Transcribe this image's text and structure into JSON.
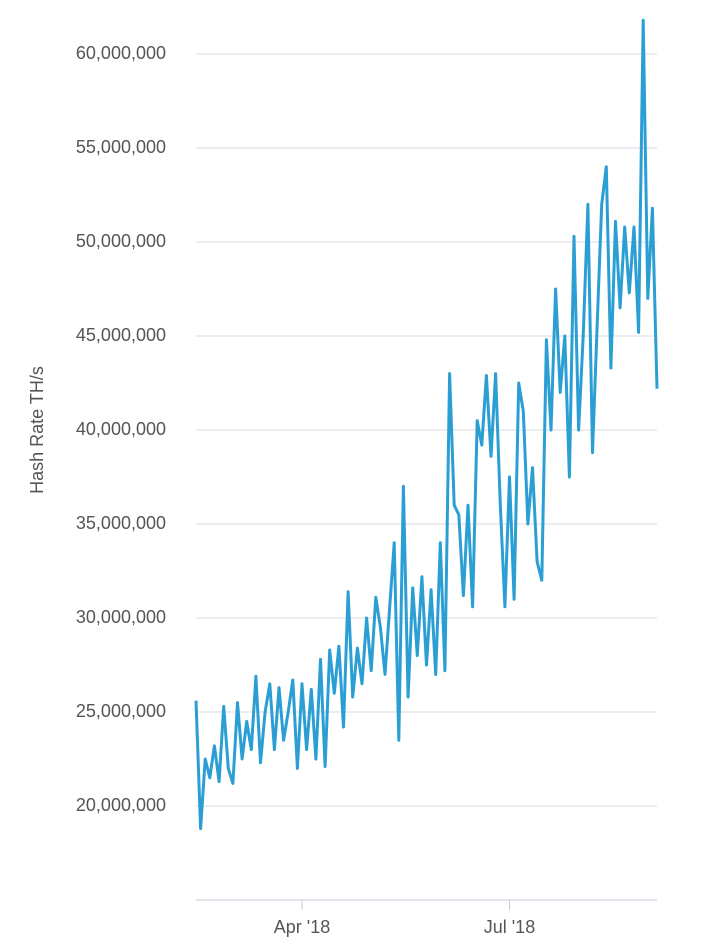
{
  "chart_data": {
    "type": "line",
    "y_label": "Hash Rate TH/s",
    "categories": [
      null,
      null,
      null,
      null,
      null,
      null,
      null,
      null,
      null,
      null,
      null,
      null,
      null,
      null,
      null,
      null,
      null,
      null,
      null,
      null,
      null,
      null,
      null,
      "Apr '18",
      null,
      null,
      null,
      null,
      null,
      null,
      null,
      null,
      null,
      null,
      null,
      null,
      null,
      null,
      null,
      null,
      null,
      null,
      null,
      null,
      null,
      null,
      null,
      null,
      null,
      null,
      null,
      null,
      null,
      null,
      null,
      null,
      null,
      null,
      null,
      null,
      null,
      null,
      null,
      null,
      null,
      null,
      null,
      null,
      "Jul '18",
      null,
      null,
      null,
      null,
      null,
      null,
      null,
      null,
      null,
      null,
      null,
      null,
      null,
      null,
      null,
      null,
      null,
      null,
      null,
      null,
      null,
      null,
      null,
      null,
      null,
      null,
      null,
      null,
      null,
      null,
      null,
      null
    ],
    "series": [
      {
        "color": "#2b9fd4",
        "values": [
          25600000,
          18800000,
          22500000,
          21500000,
          23200000,
          21300000,
          25300000,
          22000000,
          21200000,
          25500000,
          22500000,
          24500000,
          23000000,
          26900000,
          22300000,
          25000000,
          26500000,
          23000000,
          26300000,
          23500000,
          25000000,
          26700000,
          22000000,
          26500000,
          23000000,
          26200000,
          22500000,
          27800000,
          22100000,
          28300000,
          26000000,
          28500000,
          24200000,
          31400000,
          25800000,
          28400000,
          26500000,
          30000000,
          27200000,
          31100000,
          29500000,
          27000000,
          30500000,
          34000000,
          23500000,
          37000000,
          25800000,
          31600000,
          28000000,
          32200000,
          27500000,
          31500000,
          27000000,
          34000000,
          27200000,
          43000000,
          36000000,
          35500000,
          31200000,
          36000000,
          30600000,
          40500000,
          39200000,
          42900000,
          38600000,
          43000000,
          36000000,
          30600000,
          37500000,
          31000000,
          42500000,
          41000000,
          35000000,
          38000000,
          33000000,
          32000000,
          44800000,
          40000000,
          47500000,
          42000000,
          45000000,
          37500000,
          50300000,
          40000000,
          45000000,
          52000000,
          38800000,
          45500000,
          52000000,
          54000000,
          43300000,
          51100000,
          46500000,
          50800000,
          47300000,
          50800000,
          45200000,
          61800000,
          47000000,
          51800000,
          42200000
        ]
      }
    ],
    "ylim": [
      15000000,
      62800000
    ],
    "yticks": [
      {
        "value": 20000000,
        "label": "20,000,000"
      },
      {
        "value": 25000000,
        "label": "25,000,000"
      },
      {
        "value": 30000000,
        "label": "30,000,000"
      },
      {
        "value": 35000000,
        "label": "35,000,000"
      },
      {
        "value": 40000000,
        "label": "40,000,000"
      },
      {
        "value": 45000000,
        "label": "45,000,000"
      },
      {
        "value": 50000000,
        "label": "50,000,000"
      },
      {
        "value": 55000000,
        "label": "55,000,000"
      },
      {
        "value": 60000000,
        "label": "60,000,000"
      }
    ],
    "grid": true
  }
}
